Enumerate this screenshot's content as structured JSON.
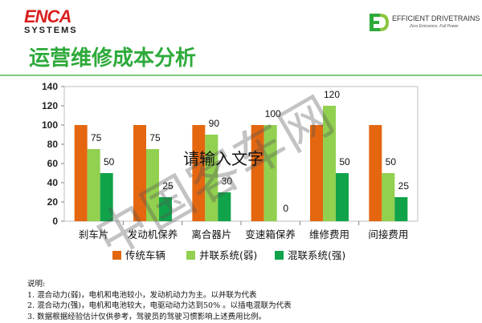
{
  "brand": {
    "logo_top": "ENCA",
    "logo_bottom": "SYSTEMS"
  },
  "partner": {
    "name": "EFFICIENT DRIVETRAINS",
    "tagline": "Zero Emissions. Full Power"
  },
  "title": "运营维修成本分析",
  "colors": {
    "traditional": "#e4670f",
    "parallel": "#92d050",
    "series": "#10a34a",
    "title": "#2eaa3b"
  },
  "chart_data": {
    "type": "bar",
    "categories": [
      "刹车片",
      "发动机保养",
      "离合器片",
      "变速箱保养",
      "维修费用",
      "间接费用"
    ],
    "series": [
      {
        "name": "传统车辆",
        "values": [
          100,
          100,
          100,
          100,
          100,
          100
        ],
        "labels": [
          "",
          "",
          "",
          "",
          "",
          ""
        ]
      },
      {
        "name": "并联系统(弱)",
        "values": [
          75,
          75,
          90,
          100,
          120,
          50
        ],
        "labels": [
          "75",
          "75",
          "90",
          "100",
          "120",
          "50"
        ]
      },
      {
        "name": "混联系统(强)",
        "values": [
          50,
          25,
          30,
          0,
          50,
          25
        ],
        "labels": [
          "50",
          "25",
          "30",
          "0",
          "50",
          "25"
        ]
      }
    ],
    "yticks": [
      "0",
      "20",
      "40",
      "60",
      "80",
      "100",
      "120",
      "140"
    ],
    "ylim": [
      0,
      140
    ],
    "legend": "bottom",
    "grid": false
  },
  "notes": {
    "heading": "说明:",
    "lines": [
      "1. 混合动力(弱)，电机和电池较小，发动机动力为主。以并联为代表",
      "2. 混合动力(强)，电机和电池较大，电驱动动力达到50% 。以插电混联为代表",
      "3. 数据根据经验估计仅供参考，驾驶员的驾驶习惯影响上述费用比例。"
    ]
  },
  "overlay": {
    "placeholder": "请输入文字",
    "watermark": "中国客车网"
  }
}
